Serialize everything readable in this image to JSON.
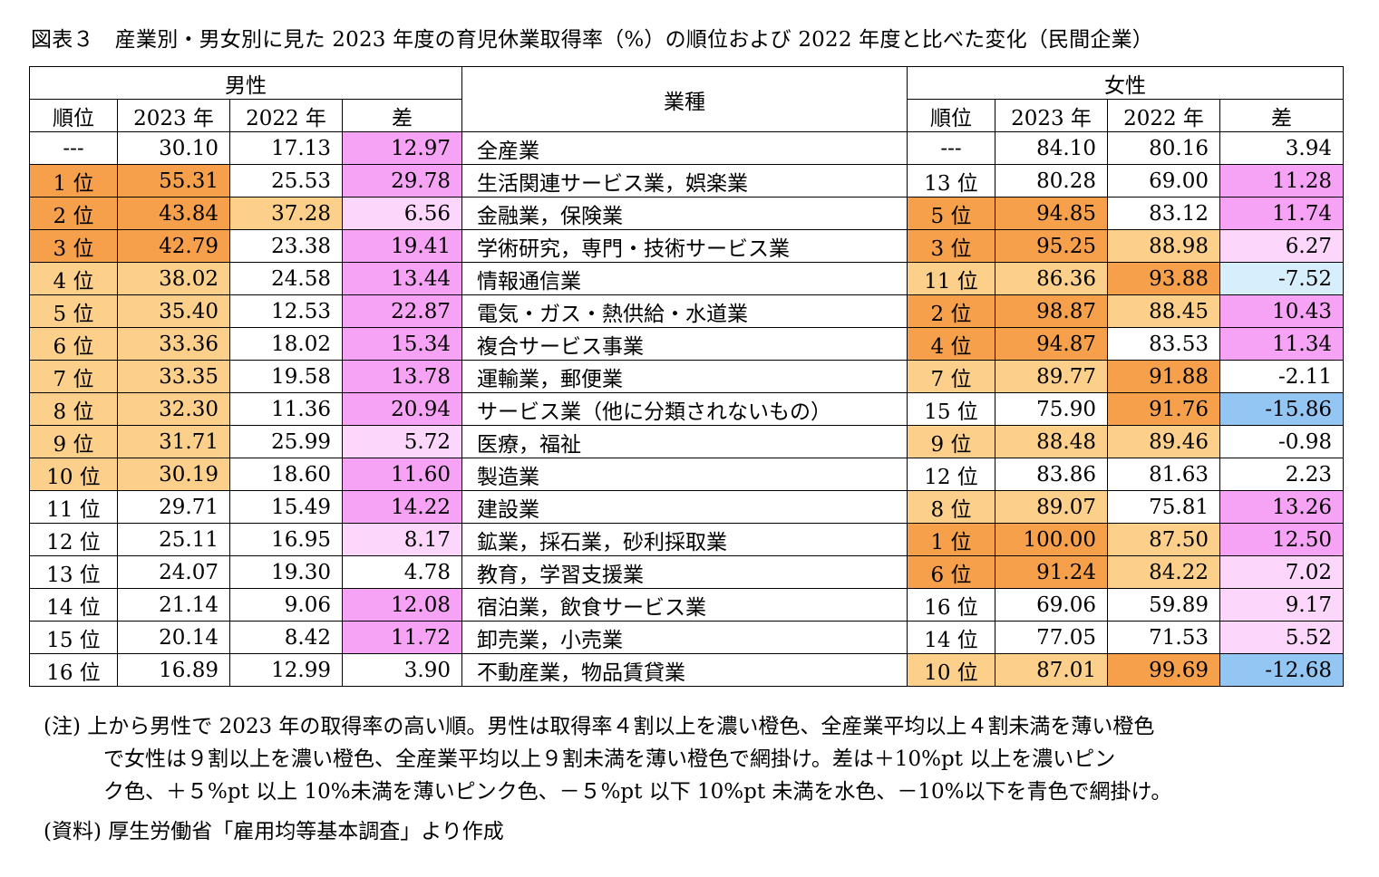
{
  "title": "図表３　産業別・男女別に見た 2023 年度の育児休業取得率（%）の順位および 2022 年度と比べた変化（民間企業）",
  "colors": {
    "dark_orange": "#f7a04b",
    "light_orange": "#fcd08a",
    "dark_pink": "#f7a3f5",
    "light_pink": "#fcd7fb",
    "light_blue": "#d7effc",
    "blue": "#93c6f3",
    "white": "#ffffff"
  },
  "chart_data": {
    "type": "table",
    "headers": {
      "male": "男性",
      "female": "女性",
      "industry": "業種",
      "rank": "順位",
      "y2023": "2023 年",
      "y2022": "2022 年",
      "diff": "差"
    },
    "rows": [
      {
        "industry": "全産業",
        "m_rank": "---",
        "m_2023": "30.10",
        "m_2022": "17.13",
        "m_diff": "12.97",
        "f_rank": "---",
        "f_2023": "84.10",
        "f_2022": "80.16",
        "f_diff": "3.94"
      },
      {
        "industry": "生活関連サービス業，娯楽業",
        "m_rank": "1 位",
        "m_2023": "55.31",
        "m_2022": "25.53",
        "m_diff": "29.78",
        "f_rank": "13 位",
        "f_2023": "80.28",
        "f_2022": "69.00",
        "f_diff": "11.28"
      },
      {
        "industry": "金融業，保険業",
        "m_rank": "2 位",
        "m_2023": "43.84",
        "m_2022": "37.28",
        "m_diff": "6.56",
        "f_rank": "5 位",
        "f_2023": "94.85",
        "f_2022": "83.12",
        "f_diff": "11.74"
      },
      {
        "industry": "学術研究，専門・技術サービス業",
        "m_rank": "3 位",
        "m_2023": "42.79",
        "m_2022": "23.38",
        "m_diff": "19.41",
        "f_rank": "3 位",
        "f_2023": "95.25",
        "f_2022": "88.98",
        "f_diff": "6.27"
      },
      {
        "industry": "情報通信業",
        "m_rank": "4 位",
        "m_2023": "38.02",
        "m_2022": "24.58",
        "m_diff": "13.44",
        "f_rank": "11 位",
        "f_2023": "86.36",
        "f_2022": "93.88",
        "f_diff": "-7.52"
      },
      {
        "industry": "電気・ガス・熱供給・水道業",
        "m_rank": "5 位",
        "m_2023": "35.40",
        "m_2022": "12.53",
        "m_diff": "22.87",
        "f_rank": "2 位",
        "f_2023": "98.87",
        "f_2022": "88.45",
        "f_diff": "10.43"
      },
      {
        "industry": "複合サービス事業",
        "m_rank": "6 位",
        "m_2023": "33.36",
        "m_2022": "18.02",
        "m_diff": "15.34",
        "f_rank": "4 位",
        "f_2023": "94.87",
        "f_2022": "83.53",
        "f_diff": "11.34"
      },
      {
        "industry": "運輸業，郵便業",
        "m_rank": "7 位",
        "m_2023": "33.35",
        "m_2022": "19.58",
        "m_diff": "13.78",
        "f_rank": "7 位",
        "f_2023": "89.77",
        "f_2022": "91.88",
        "f_diff": "-2.11"
      },
      {
        "industry": "サービス業（他に分類されないもの）",
        "m_rank": "8 位",
        "m_2023": "32.30",
        "m_2022": "11.36",
        "m_diff": "20.94",
        "f_rank": "15 位",
        "f_2023": "75.90",
        "f_2022": "91.76",
        "f_diff": "-15.86"
      },
      {
        "industry": "医療，福祉",
        "m_rank": "9 位",
        "m_2023": "31.71",
        "m_2022": "25.99",
        "m_diff": "5.72",
        "f_rank": "9 位",
        "f_2023": "88.48",
        "f_2022": "89.46",
        "f_diff": "-0.98"
      },
      {
        "industry": "製造業",
        "m_rank": "10 位",
        "m_2023": "30.19",
        "m_2022": "18.60",
        "m_diff": "11.60",
        "f_rank": "12 位",
        "f_2023": "83.86",
        "f_2022": "81.63",
        "f_diff": "2.23"
      },
      {
        "industry": "建設業",
        "m_rank": "11 位",
        "m_2023": "29.71",
        "m_2022": "15.49",
        "m_diff": "14.22",
        "f_rank": "8 位",
        "f_2023": "89.07",
        "f_2022": "75.81",
        "f_diff": "13.26"
      },
      {
        "industry": "鉱業，採石業，砂利採取業",
        "m_rank": "12 位",
        "m_2023": "25.11",
        "m_2022": "16.95",
        "m_diff": "8.17",
        "f_rank": "1 位",
        "f_2023": "100.00",
        "f_2022": "87.50",
        "f_diff": "12.50"
      },
      {
        "industry": "教育，学習支援業",
        "m_rank": "13 位",
        "m_2023": "24.07",
        "m_2022": "19.30",
        "m_diff": "4.78",
        "f_rank": "6 位",
        "f_2023": "91.24",
        "f_2022": "84.22",
        "f_diff": "7.02"
      },
      {
        "industry": "宿泊業，飲食サービス業",
        "m_rank": "14 位",
        "m_2023": "21.14",
        "m_2022": "9.06",
        "m_diff": "12.08",
        "f_rank": "16 位",
        "f_2023": "69.06",
        "f_2022": "59.89",
        "f_diff": "9.17"
      },
      {
        "industry": "卸売業，小売業",
        "m_rank": "15 位",
        "m_2023": "20.14",
        "m_2022": "8.42",
        "m_diff": "11.72",
        "f_rank": "14 位",
        "f_2023": "77.05",
        "f_2022": "71.53",
        "f_diff": "5.52"
      },
      {
        "industry": "不動産業，物品賃貸業",
        "m_rank": "16 位",
        "m_2023": "16.89",
        "m_2022": "12.99",
        "m_diff": "3.90",
        "f_rank": "10 位",
        "f_2023": "87.01",
        "f_2022": "99.69",
        "f_diff": "-12.68"
      }
    ]
  },
  "notes": [
    "(注) 上から男性で 2023 年の取得率の高い順。男性は取得率４割以上を濃い橙色、全産業平均以上４割未満を薄い橙色",
    "で女性は９割以上を濃い橙色、全産業平均以上９割未満を薄い橙色で網掛け。差は＋10%pt 以上を濃いピン",
    "ク色、＋５%pt 以上 10%未満を薄いピンク色、－５%pt 以下 10%pt 未満を水色、－10%以下を青色で網掛け。"
  ],
  "source": "(資料) 厚生労働省「雇用均等基本調査」より作成"
}
